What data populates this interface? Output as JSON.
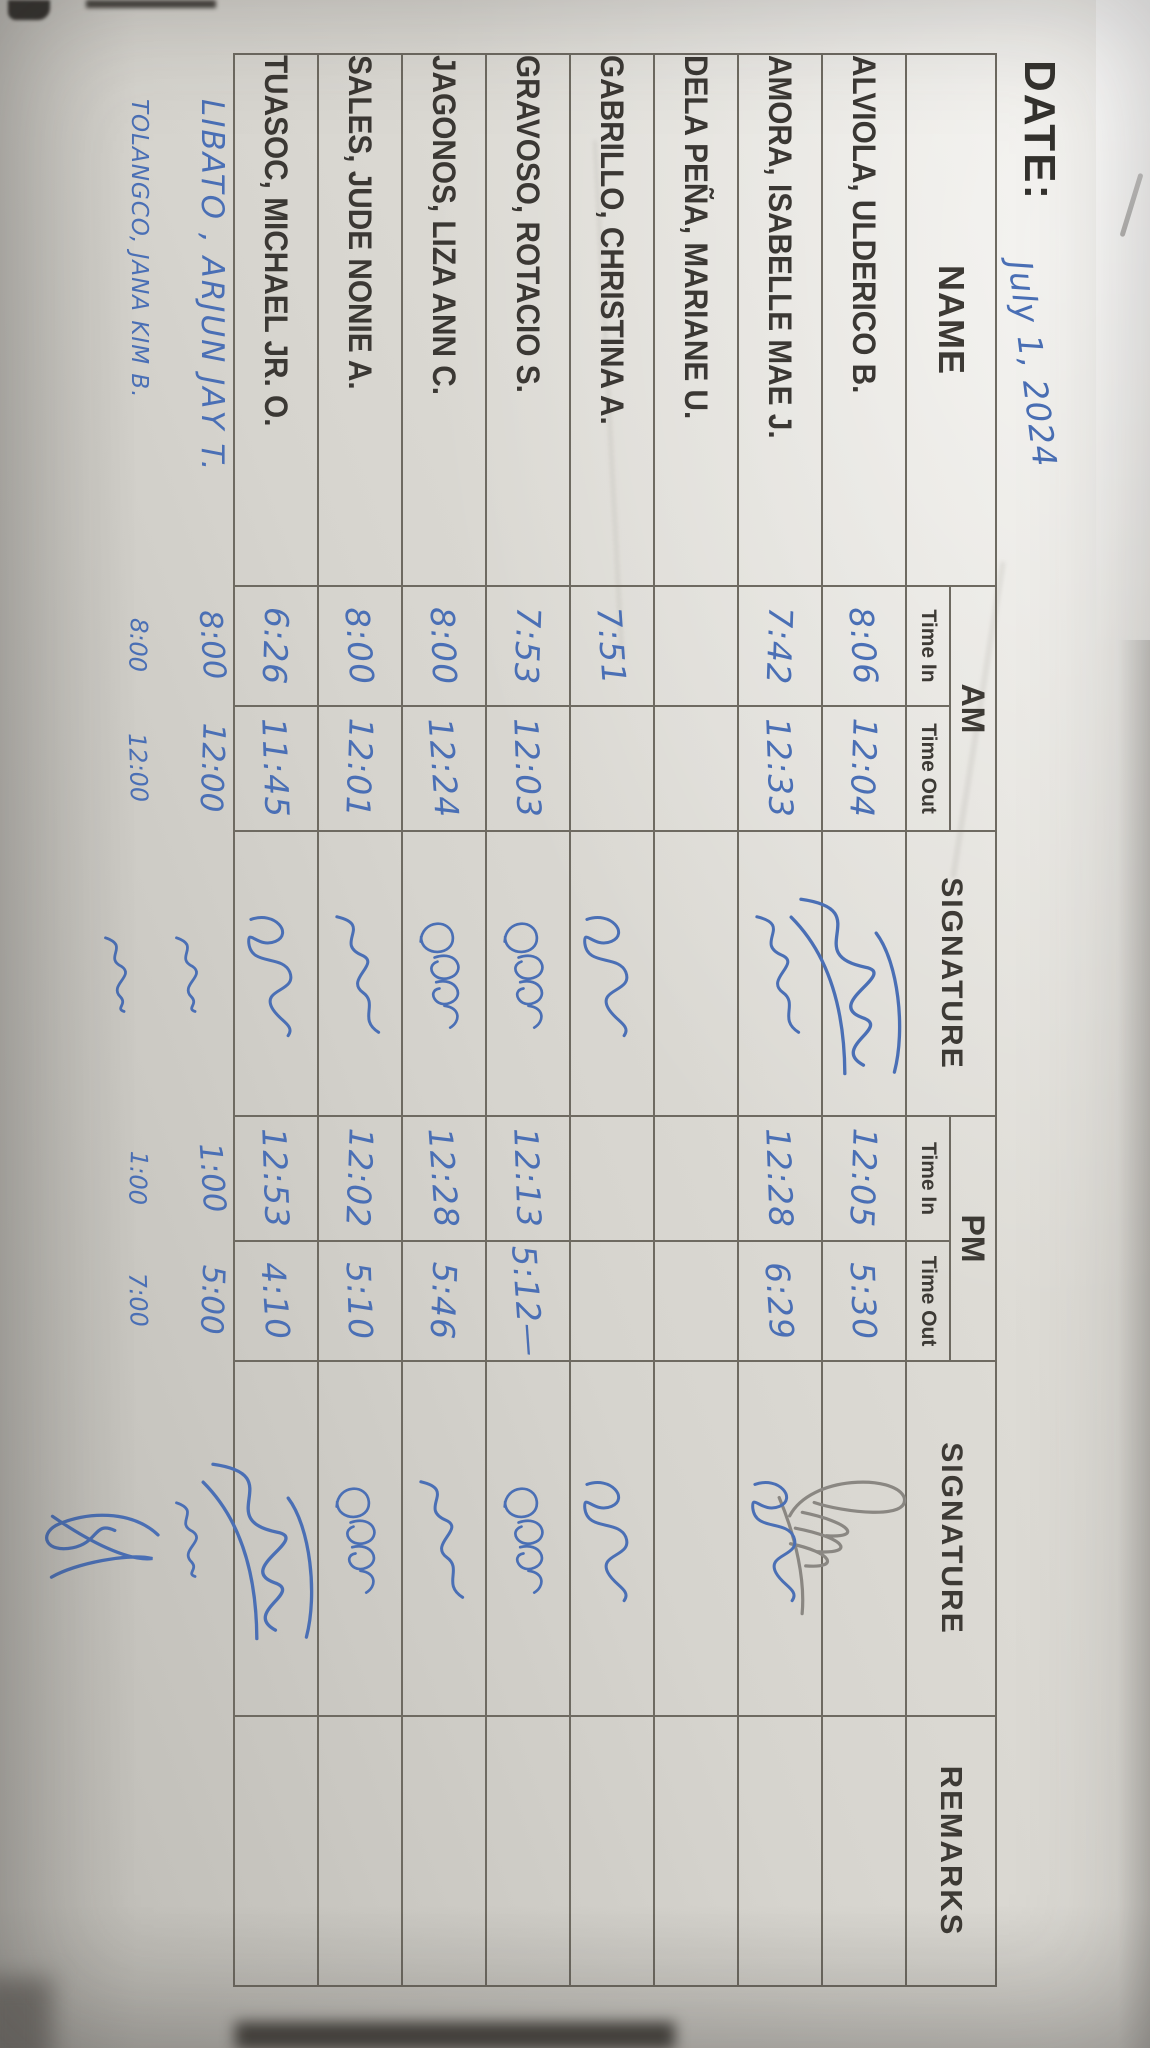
{
  "date_label": "DATE:",
  "date_value": "July 1, 2024",
  "ink": {
    "blue": "#4a6fb5",
    "pencil": "#8a8782",
    "print": "#3b3834",
    "table_line": "#6e6a61",
    "paper": "#d6d4ce"
  },
  "table": {
    "header": {
      "name": "NAME",
      "am": "AM",
      "pm": "PM",
      "signature": "SIGNATURE",
      "remarks": "REMARKS",
      "time_in": "Time In",
      "time_out": "Time Out"
    },
    "rows": [
      {
        "name": "ALVIOLA, ULDERICO B.",
        "am_in": "8:06",
        "am_out": "12:04",
        "am_sig": "lgblue",
        "pm_in": "12:05",
        "pm_out": "5:30",
        "pm_sig": "lgpencil",
        "remarks": ""
      },
      {
        "name": "AMORA, ISABELLE MAE J.",
        "am_in": "7:42",
        "am_out": "12:33",
        "am_sig": "s1",
        "pm_in": "12:28",
        "pm_out": "6:29",
        "pm_sig": "s2",
        "remarks": ""
      },
      {
        "name": "DELA PEÑA, MARIANE U.",
        "am_in": "",
        "am_out": "",
        "am_sig": "",
        "pm_in": "",
        "pm_out": "",
        "pm_sig": "",
        "remarks": ""
      },
      {
        "name": "GABRILLO, CHRISTINA A.",
        "am_in": "7:51",
        "am_out": "",
        "am_sig": "s2",
        "pm_in": "",
        "pm_out": "",
        "pm_sig": "s2",
        "remarks": ""
      },
      {
        "name": "GRAVOSO, ROTACIO S.",
        "am_in": "7:53",
        "am_out": "12:03",
        "am_sig": "s3",
        "pm_in": "12:13",
        "pm_out": "5:12—",
        "pm_sig": "s3",
        "remarks": ""
      },
      {
        "name": "JAGONOS, LIZA ANN C.",
        "am_in": "8:00",
        "am_out": "12:24",
        "am_sig": "s3",
        "pm_in": "12:28",
        "pm_out": "5:46",
        "pm_sig": "s1",
        "remarks": ""
      },
      {
        "name": "SALES, JUDE NONIE A.",
        "am_in": "8:00",
        "am_out": "12:01",
        "am_sig": "s1",
        "pm_in": "12:02",
        "pm_out": "5:10",
        "pm_sig": "s3",
        "remarks": ""
      },
      {
        "name": "TUASOC, MICHAEL JR. O.",
        "am_in": "6:26",
        "am_out": "11:45",
        "am_sig": "s2",
        "pm_in": "12:53",
        "pm_out": "4:10",
        "pm_sig": "lgblue",
        "remarks": ""
      }
    ],
    "extra_rows": [
      {
        "name": "LIBATO , ARJUN JAY T.",
        "am_in": "8:00",
        "am_out": "12:00",
        "am_sig": "sm",
        "pm_in": "1:00",
        "pm_out": "5:00",
        "pm_sig": "sm",
        "remarks": ""
      },
      {
        "name": "TOLANGCO, JANA KIM B.",
        "am_in": "8:00",
        "am_out": "12:00",
        "am_sig": "sm",
        "pm_in": "1:00",
        "pm_out": "7:00",
        "pm_sig": "tall",
        "remarks": ""
      }
    ]
  }
}
